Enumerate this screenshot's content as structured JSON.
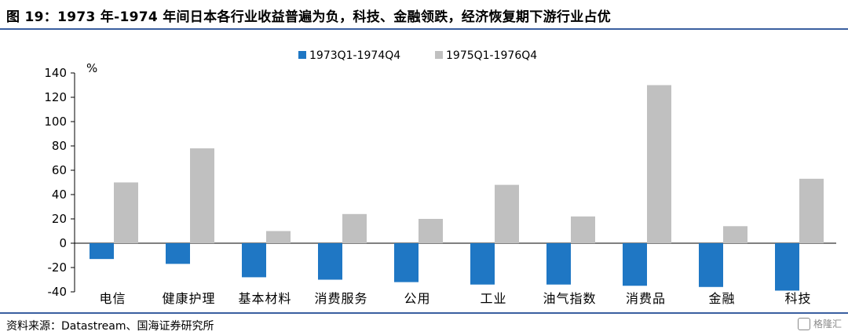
{
  "header": {
    "title": "图 19：1973 年-1974 年间日本各行业收益普遍为负，科技、金融领跌，经济恢复期下游行业占优"
  },
  "footer": {
    "source": "资料来源：Datastream、国海证券研究所",
    "watermark": "格隆汇"
  },
  "colors": {
    "series1": "#1f77c4",
    "series2": "#c0c0c0",
    "rule": "#3a5fa0"
  },
  "chart_data": {
    "type": "bar",
    "ylabel": "%",
    "ylim": [
      -40,
      140
    ],
    "yticks": [
      -40,
      -20,
      0,
      20,
      40,
      60,
      80,
      100,
      120,
      140
    ],
    "grid": false,
    "legend_position": "top-center",
    "categories": [
      "电信",
      "健康护理",
      "基本材料",
      "消费服务",
      "公用",
      "工业",
      "油气指数",
      "消费品",
      "金融",
      "科技"
    ],
    "series": [
      {
        "name": "1973Q1-1974Q4",
        "values": [
          -13,
          -17,
          -28,
          -30,
          -32,
          -34,
          -34,
          -35,
          -36,
          -39
        ]
      },
      {
        "name": "1975Q1-1976Q4",
        "values": [
          50,
          78,
          10,
          24,
          20,
          48,
          22,
          130,
          14,
          53
        ]
      }
    ]
  }
}
